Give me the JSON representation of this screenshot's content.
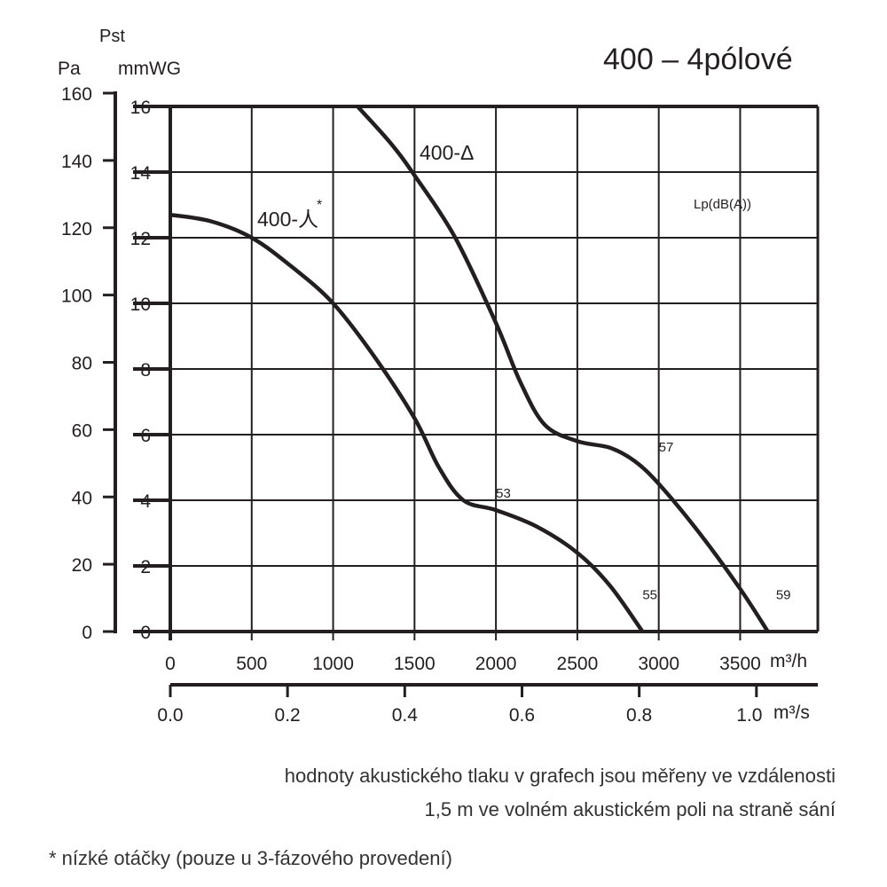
{
  "chart_data": {
    "type": "line",
    "title": "400 – 4pólové",
    "ylabel": "Pst",
    "ylabel_units_left": "Pa",
    "ylabel_units_right": "mmWG",
    "xlabel_units": "m³/h",
    "xlabel2_units": "m³/s",
    "xlim": [
      0,
      4000
    ],
    "ylim_mmwg": [
      0,
      16
    ],
    "ylim_pa": [
      0,
      160
    ],
    "x_ticks": [
      "0",
      "500",
      "1000",
      "1500",
      "2000",
      "2500",
      "3000",
      "3500"
    ],
    "x_tick_values": [
      0,
      500,
      1000,
      1500,
      2000,
      2500,
      3000,
      3500
    ],
    "x2_ticks": [
      "0.0",
      "0.2",
      "0.4",
      "0.6",
      "0.8",
      "1.0"
    ],
    "x2_tick_values": [
      0,
      0.2,
      0.4,
      0.6,
      0.8,
      1.0
    ],
    "y_ticks_mmwg": [
      "0",
      "2",
      "4",
      "6",
      "8",
      "10",
      "12",
      "14",
      "16"
    ],
    "y_ticks_pa": [
      "0",
      "20",
      "40",
      "60",
      "80",
      "100",
      "120",
      "140",
      "160"
    ],
    "grid": true,
    "sound_label": "Lp(dB(A))",
    "series": [
      {
        "name": "400-人",
        "marker": "*",
        "x": [
          0,
          250,
          500,
          750,
          1000,
          1250,
          1500,
          1650,
          1800,
          2000,
          2250,
          2500,
          2700,
          2900
        ],
        "y": [
          12.7,
          12.5,
          12.0,
          11.1,
          10.0,
          8.4,
          6.5,
          5.0,
          4.0,
          3.7,
          3.2,
          2.4,
          1.4,
          0
        ],
        "sound": [
          {
            "x": 2000,
            "y": 4.0,
            "label": "53"
          },
          {
            "x": 2900,
            "y": 0.9,
            "label": "55"
          }
        ]
      },
      {
        "name": "400-Δ",
        "marker": "",
        "x": [
          1150,
          1350,
          1500,
          1750,
          2000,
          2150,
          2300,
          2500,
          2700,
          2850,
          3000,
          3250,
          3500,
          3670
        ],
        "y": [
          16,
          14.9,
          13.9,
          12.0,
          9.4,
          7.6,
          6.3,
          5.8,
          5.6,
          5.2,
          4.5,
          3.0,
          1.3,
          0
        ],
        "sound": [
          {
            "x": 3000,
            "y": 5.4,
            "label": "57"
          },
          {
            "x": 3720,
            "y": 0.9,
            "label": "59"
          }
        ]
      }
    ]
  },
  "notes": {
    "line1": "hodnoty akustického tlaku v grafech jsou měřeny ve vzdálenosti",
    "line2": "1,5 m ve volném akustickém poli na straně sání",
    "line3": "* nízké otáčky (pouze u 3-fázového provedení)"
  }
}
